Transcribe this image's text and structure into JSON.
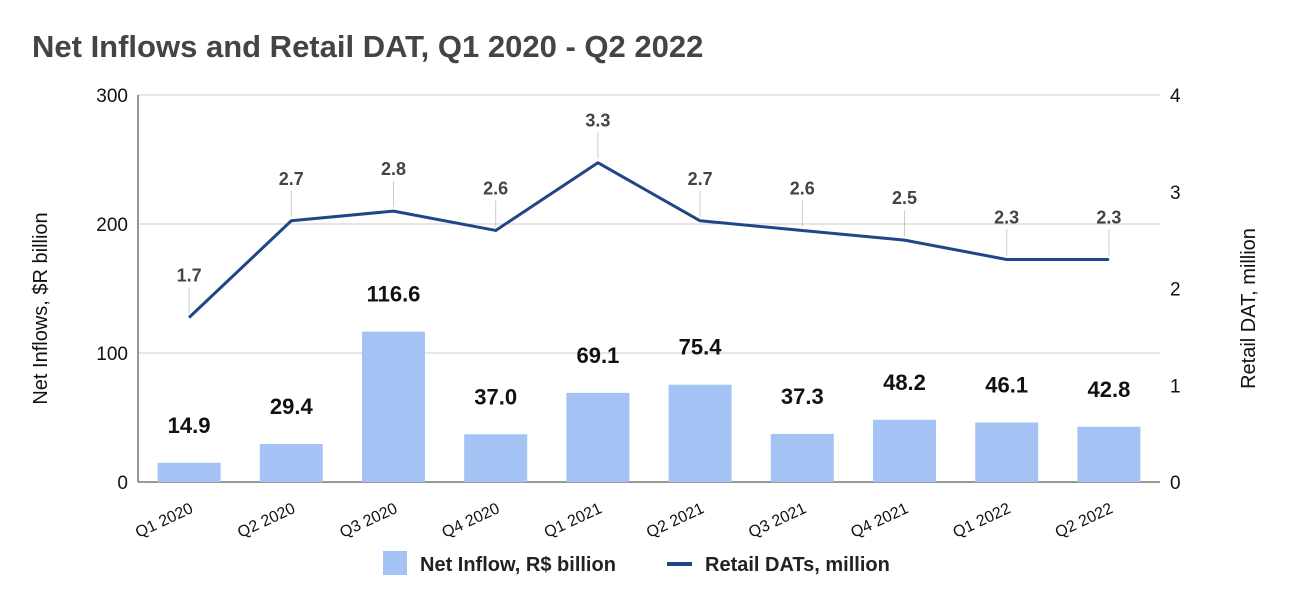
{
  "chart_data": {
    "type": "bar",
    "title": "Net Inflows and Retail DAT, Q1 2020 - Q2 2022",
    "categories": [
      "Q1 2020",
      "Q2 2020",
      "Q3 2020",
      "Q4 2020",
      "Q1 2021",
      "Q2 2021",
      "Q3 2021",
      "Q4 2021",
      "Q1 2022",
      "Q2 2022"
    ],
    "series": [
      {
        "name": "Net Inflow, R$ billion",
        "type": "bar",
        "axis": "left",
        "color": "#a4c2f4",
        "values": [
          14.9,
          29.4,
          116.6,
          37.0,
          69.1,
          75.4,
          37.3,
          48.2,
          46.1,
          42.8
        ],
        "labels": [
          "14.9",
          "29.4",
          "116.6",
          "37.0",
          "69.1",
          "75.4",
          "37.3",
          "48.2",
          "46.1",
          "42.8"
        ]
      },
      {
        "name": "Retail DATs, million",
        "type": "line",
        "axis": "right",
        "color": "#1f4788",
        "values": [
          1.7,
          2.7,
          2.8,
          2.6,
          3.3,
          2.7,
          2.6,
          2.5,
          2.3,
          2.3
        ],
        "labels": [
          "1.7",
          "2.7",
          "2.8",
          "2.6",
          "3.3",
          "2.7",
          "2.6",
          "2.5",
          "2.3",
          "2.3"
        ]
      }
    ],
    "y_left": {
      "label": "Net Inflows, $R billion",
      "range": [
        0,
        300
      ],
      "ticks": [
        "0",
        "100",
        "200",
        "300"
      ]
    },
    "y_right": {
      "label": "Retail DAT, million",
      "range": [
        0,
        4
      ],
      "ticks": [
        "0",
        "1",
        "2",
        "3",
        "4"
      ]
    },
    "grid": true,
    "legend_position": "bottom"
  }
}
